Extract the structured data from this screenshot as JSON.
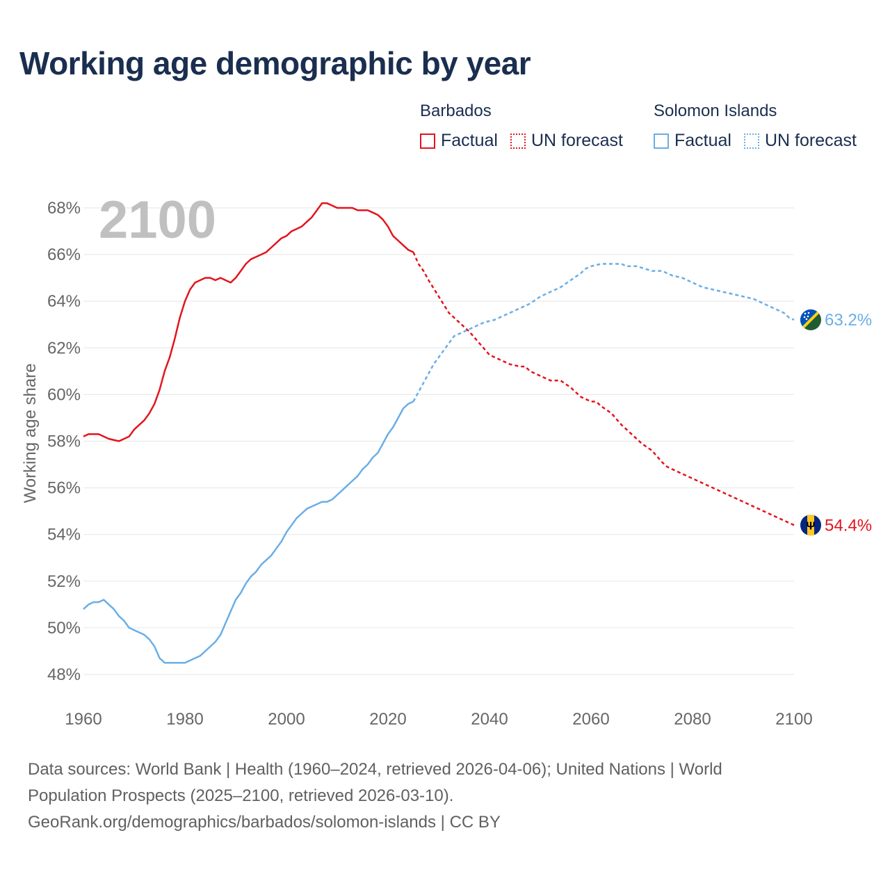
{
  "title": "Working age demographic by year",
  "year_label": "2100",
  "legend": {
    "barbados": {
      "name": "Barbados",
      "factual": "Factual",
      "forecast": "UN forecast"
    },
    "solomon": {
      "name": "Solomon Islands",
      "factual": "Factual",
      "forecast": "UN forecast"
    }
  },
  "colors": {
    "barbados": "#e3141c",
    "solomon": "#6aaee6",
    "grid": "#e6e6e6",
    "axis_text": "#666666",
    "year_text": "#c0c0c0"
  },
  "icons": {
    "barbados": "barbados-flag-icon",
    "solomon": "solomon-islands-flag-icon"
  },
  "source": {
    "line1": "Data sources: World Bank | Health (1960–2024, retrieved 2026-04-06); United Nations | World",
    "line2": "Population Prospects (2025–2100, retrieved 2026-03-10).",
    "line3": "GeoRank.org/demographics/barbados/solomon-islands | CC BY"
  },
  "chart_data": {
    "type": "line",
    "title": "Working age demographic by year",
    "xlabel": "",
    "ylabel": "Working age share",
    "xlim": [
      1960,
      2100
    ],
    "ylim": [
      47,
      68.5
    ],
    "x_ticks": [
      1960,
      1980,
      2000,
      2020,
      2040,
      2060,
      2080,
      2100
    ],
    "y_ticks": [
      48,
      50,
      52,
      54,
      56,
      58,
      60,
      62,
      64,
      66,
      68
    ],
    "y_tick_labels": [
      "48%",
      "50%",
      "52%",
      "54%",
      "56%",
      "58%",
      "60%",
      "62%",
      "64%",
      "66%",
      "68%"
    ],
    "forecast_start": 2025,
    "series": [
      {
        "name": "Barbados",
        "end_label": "54.4%",
        "points": [
          [
            1960,
            58.2
          ],
          [
            1961,
            58.3
          ],
          [
            1963,
            58.3
          ],
          [
            1965,
            58.1
          ],
          [
            1967,
            58.0
          ],
          [
            1969,
            58.2
          ],
          [
            1970,
            58.5
          ],
          [
            1972,
            58.9
          ],
          [
            1973,
            59.2
          ],
          [
            1974,
            59.6
          ],
          [
            1975,
            60.2
          ],
          [
            1976,
            61.0
          ],
          [
            1977,
            61.6
          ],
          [
            1978,
            62.4
          ],
          [
            1979,
            63.3
          ],
          [
            1980,
            64.0
          ],
          [
            1981,
            64.5
          ],
          [
            1982,
            64.8
          ],
          [
            1983,
            64.9
          ],
          [
            1984,
            65.0
          ],
          [
            1985,
            65.0
          ],
          [
            1986,
            64.9
          ],
          [
            1987,
            65.0
          ],
          [
            1988,
            64.9
          ],
          [
            1989,
            64.8
          ],
          [
            1990,
            65.0
          ],
          [
            1991,
            65.3
          ],
          [
            1992,
            65.6
          ],
          [
            1993,
            65.8
          ],
          [
            1994,
            65.9
          ],
          [
            1995,
            66.0
          ],
          [
            1996,
            66.1
          ],
          [
            1997,
            66.3
          ],
          [
            1998,
            66.5
          ],
          [
            1999,
            66.7
          ],
          [
            2000,
            66.8
          ],
          [
            2001,
            67.0
          ],
          [
            2002,
            67.1
          ],
          [
            2003,
            67.2
          ],
          [
            2004,
            67.4
          ],
          [
            2005,
            67.6
          ],
          [
            2006,
            67.9
          ],
          [
            2007,
            68.2
          ],
          [
            2008,
            68.2
          ],
          [
            2009,
            68.1
          ],
          [
            2010,
            68.0
          ],
          [
            2013,
            68.0
          ],
          [
            2014,
            67.9
          ],
          [
            2016,
            67.9
          ],
          [
            2017,
            67.8
          ],
          [
            2018,
            67.7
          ],
          [
            2019,
            67.5
          ],
          [
            2020,
            67.2
          ],
          [
            2021,
            66.8
          ],
          [
            2022,
            66.6
          ],
          [
            2023,
            66.4
          ],
          [
            2024,
            66.2
          ],
          [
            2025,
            66.1
          ],
          [
            2026,
            65.6
          ],
          [
            2027,
            65.3
          ],
          [
            2028,
            64.9
          ],
          [
            2030,
            64.2
          ],
          [
            2032,
            63.5
          ],
          [
            2034,
            63.1
          ],
          [
            2035,
            62.9
          ],
          [
            2036,
            62.7
          ],
          [
            2038,
            62.2
          ],
          [
            2040,
            61.7
          ],
          [
            2042,
            61.5
          ],
          [
            2044,
            61.3
          ],
          [
            2046,
            61.2
          ],
          [
            2047,
            61.2
          ],
          [
            2048,
            61.0
          ],
          [
            2050,
            60.8
          ],
          [
            2052,
            60.6
          ],
          [
            2054,
            60.6
          ],
          [
            2056,
            60.3
          ],
          [
            2058,
            59.9
          ],
          [
            2060,
            59.7
          ],
          [
            2061,
            59.7
          ],
          [
            2062,
            59.5
          ],
          [
            2064,
            59.2
          ],
          [
            2066,
            58.7
          ],
          [
            2068,
            58.3
          ],
          [
            2070,
            57.9
          ],
          [
            2072,
            57.6
          ],
          [
            2074,
            57.1
          ],
          [
            2075,
            56.9
          ],
          [
            2078,
            56.6
          ],
          [
            2082,
            56.2
          ],
          [
            2086,
            55.8
          ],
          [
            2090,
            55.4
          ],
          [
            2094,
            55.0
          ],
          [
            2098,
            54.6
          ],
          [
            2100,
            54.4
          ]
        ]
      },
      {
        "name": "Solomon Islands",
        "end_label": "63.2%",
        "points": [
          [
            1960,
            50.8
          ],
          [
            1961,
            51.0
          ],
          [
            1962,
            51.1
          ],
          [
            1963,
            51.1
          ],
          [
            1964,
            51.2
          ],
          [
            1965,
            51.0
          ],
          [
            1966,
            50.8
          ],
          [
            1967,
            50.5
          ],
          [
            1968,
            50.3
          ],
          [
            1969,
            50.0
          ],
          [
            1970,
            49.9
          ],
          [
            1972,
            49.7
          ],
          [
            1973,
            49.5
          ],
          [
            1974,
            49.2
          ],
          [
            1975,
            48.7
          ],
          [
            1976,
            48.5
          ],
          [
            1978,
            48.5
          ],
          [
            1980,
            48.5
          ],
          [
            1982,
            48.7
          ],
          [
            1983,
            48.8
          ],
          [
            1984,
            49.0
          ],
          [
            1986,
            49.4
          ],
          [
            1987,
            49.7
          ],
          [
            1988,
            50.2
          ],
          [
            1989,
            50.7
          ],
          [
            1990,
            51.2
          ],
          [
            1991,
            51.5
          ],
          [
            1992,
            51.9
          ],
          [
            1993,
            52.2
          ],
          [
            1994,
            52.4
          ],
          [
            1995,
            52.7
          ],
          [
            1996,
            52.9
          ],
          [
            1997,
            53.1
          ],
          [
            1998,
            53.4
          ],
          [
            1999,
            53.7
          ],
          [
            2000,
            54.1
          ],
          [
            2001,
            54.4
          ],
          [
            2002,
            54.7
          ],
          [
            2003,
            54.9
          ],
          [
            2004,
            55.1
          ],
          [
            2005,
            55.2
          ],
          [
            2006,
            55.3
          ],
          [
            2007,
            55.4
          ],
          [
            2008,
            55.4
          ],
          [
            2009,
            55.5
          ],
          [
            2010,
            55.7
          ],
          [
            2011,
            55.9
          ],
          [
            2012,
            56.1
          ],
          [
            2013,
            56.3
          ],
          [
            2014,
            56.5
          ],
          [
            2015,
            56.8
          ],
          [
            2016,
            57.0
          ],
          [
            2017,
            57.3
          ],
          [
            2018,
            57.5
          ],
          [
            2019,
            57.9
          ],
          [
            2020,
            58.3
          ],
          [
            2021,
            58.6
          ],
          [
            2022,
            59.0
          ],
          [
            2023,
            59.4
          ],
          [
            2024,
            59.6
          ],
          [
            2025,
            59.7
          ],
          [
            2026,
            60.1
          ],
          [
            2027,
            60.5
          ],
          [
            2028,
            60.9
          ],
          [
            2029,
            61.3
          ],
          [
            2030,
            61.6
          ],
          [
            2031,
            61.9
          ],
          [
            2032,
            62.2
          ],
          [
            2033,
            62.5
          ],
          [
            2034,
            62.6
          ],
          [
            2036,
            62.8
          ],
          [
            2038,
            63.0
          ],
          [
            2039,
            63.1
          ],
          [
            2041,
            63.2
          ],
          [
            2043,
            63.4
          ],
          [
            2046,
            63.7
          ],
          [
            2048,
            63.9
          ],
          [
            2050,
            64.2
          ],
          [
            2052,
            64.4
          ],
          [
            2054,
            64.6
          ],
          [
            2056,
            64.9
          ],
          [
            2058,
            65.2
          ],
          [
            2059,
            65.4
          ],
          [
            2060,
            65.5
          ],
          [
            2062,
            65.6
          ],
          [
            2064,
            65.6
          ],
          [
            2066,
            65.6
          ],
          [
            2067,
            65.5
          ],
          [
            2069,
            65.5
          ],
          [
            2072,
            65.3
          ],
          [
            2074,
            65.3
          ],
          [
            2076,
            65.1
          ],
          [
            2078,
            65.0
          ],
          [
            2080,
            64.8
          ],
          [
            2082,
            64.6
          ],
          [
            2084,
            64.5
          ],
          [
            2086,
            64.4
          ],
          [
            2088,
            64.3
          ],
          [
            2090,
            64.2
          ],
          [
            2092,
            64.1
          ],
          [
            2094,
            63.9
          ],
          [
            2096,
            63.7
          ],
          [
            2098,
            63.5
          ],
          [
            2099,
            63.3
          ],
          [
            2100,
            63.2
          ]
        ]
      }
    ]
  }
}
